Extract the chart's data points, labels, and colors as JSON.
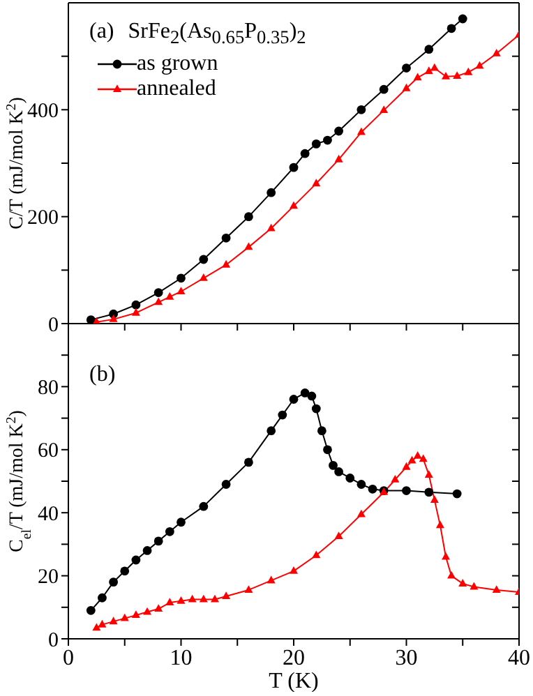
{
  "chart_data": [
    {
      "type": "line",
      "ylabel": "C/T (mJ/mol K$^{2}$)",
      "annotations": [
        "(a)",
        "SrFe$_{2}$(As$_{0.65}$P$_{0.35}$)$_{2}$"
      ],
      "xlim": [
        0,
        40
      ],
      "xticks": [
        0,
        {
          "value": 5,
          "label": null
        },
        10,
        {
          "value": 15,
          "label": null
        },
        20,
        {
          "value": 25,
          "label": null
        },
        30,
        {
          "value": 35,
          "label": null
        },
        40
      ],
      "ylim": [
        0,
        600
      ],
      "yticks": [
        0,
        {
          "value": 100,
          "label": null
        },
        200,
        {
          "value": 300,
          "label": null
        },
        400,
        {
          "value": 500,
          "label": null
        }
      ],
      "tick_labels": "y",
      "legend": "top left",
      "line_style": "solid",
      "series": [
        {
          "name": "as grown",
          "color": "#000000",
          "marker": "circle",
          "x": [
            2,
            4,
            6,
            8,
            10,
            12,
            14,
            16,
            18,
            20,
            21,
            22,
            23,
            24,
            26,
            28,
            30,
            32,
            34,
            35
          ],
          "values": [
            7,
            18,
            35,
            58,
            85,
            120,
            160,
            200,
            245,
            292,
            318,
            336,
            343,
            360,
            400,
            438,
            478,
            513,
            552,
            570
          ]
        },
        {
          "name": "annealed",
          "color": "#ff0000",
          "marker": "triangle",
          "x": [
            2.5,
            4,
            6,
            8,
            9,
            10,
            12,
            14,
            16,
            18,
            20,
            22,
            24,
            26,
            28,
            30,
            31,
            32,
            32.5,
            33.5,
            34.5,
            35.5,
            36.5,
            38,
            40
          ],
          "values": [
            3,
            8,
            20,
            40,
            50,
            60,
            85,
            110,
            143,
            178,
            220,
            262,
            307,
            358,
            399,
            440,
            460,
            472,
            478,
            462,
            463,
            470,
            482,
            505,
            540
          ]
        }
      ]
    },
    {
      "type": "line",
      "ylabel": "C$_{el}$/T (mJ/mol K$^{2}$)",
      "xlabel": "T (K)",
      "annotations": [
        "(b)"
      ],
      "xlim": [
        0,
        40
      ],
      "xticks": [
        0,
        {
          "value": 5,
          "label": null
        },
        10,
        {
          "value": 15,
          "label": null
        },
        20,
        {
          "value": 25,
          "label": null
        },
        30,
        {
          "value": 35,
          "label": null
        },
        40
      ],
      "ylim": [
        0,
        100
      ],
      "yticks": [
        0,
        {
          "value": 10,
          "label": null
        },
        20,
        {
          "value": 30,
          "label": null
        },
        40,
        {
          "value": 50,
          "label": null
        },
        60,
        {
          "value": 70,
          "label": null
        },
        80,
        {
          "value": 90,
          "label": null
        }
      ],
      "line_style": "solid",
      "series": [
        {
          "color": "#000000",
          "marker": "circle",
          "x": [
            2,
            3,
            4,
            5,
            6,
            7,
            8,
            9,
            10,
            12,
            14,
            16,
            18,
            19,
            20,
            21,
            21.6,
            22,
            22.5,
            23,
            23.5,
            24,
            25,
            26,
            27,
            28,
            30,
            32,
            34.5
          ],
          "values": [
            9,
            13,
            18,
            21.5,
            25,
            28,
            31,
            34,
            37,
            42,
            49,
            56,
            66,
            71,
            76,
            78,
            77,
            73,
            66,
            60,
            55,
            53,
            51,
            49,
            47.5,
            47,
            47,
            46.5,
            46
          ]
        },
        {
          "color": "#ff0000",
          "marker": "triangle",
          "x": [
            2.5,
            3,
            4,
            5,
            6,
            7,
            8,
            9,
            10,
            11,
            12,
            13,
            14,
            16,
            18,
            20,
            22,
            24,
            26,
            28,
            29,
            30,
            30.5,
            31,
            31.5,
            32,
            32.5,
            33,
            33.5,
            34,
            35,
            36,
            38,
            40
          ],
          "values": [
            3.5,
            4.5,
            5.5,
            6.5,
            7.5,
            8.5,
            9.5,
            11.5,
            12,
            12.5,
            12.5,
            12.5,
            13.5,
            15.5,
            18.5,
            21.5,
            26.5,
            32.5,
            39.5,
            46.5,
            50.5,
            54.5,
            56.5,
            58,
            57,
            52,
            44,
            36,
            26,
            20,
            17.5,
            16.5,
            15.5,
            14.8
          ]
        }
      ]
    }
  ]
}
